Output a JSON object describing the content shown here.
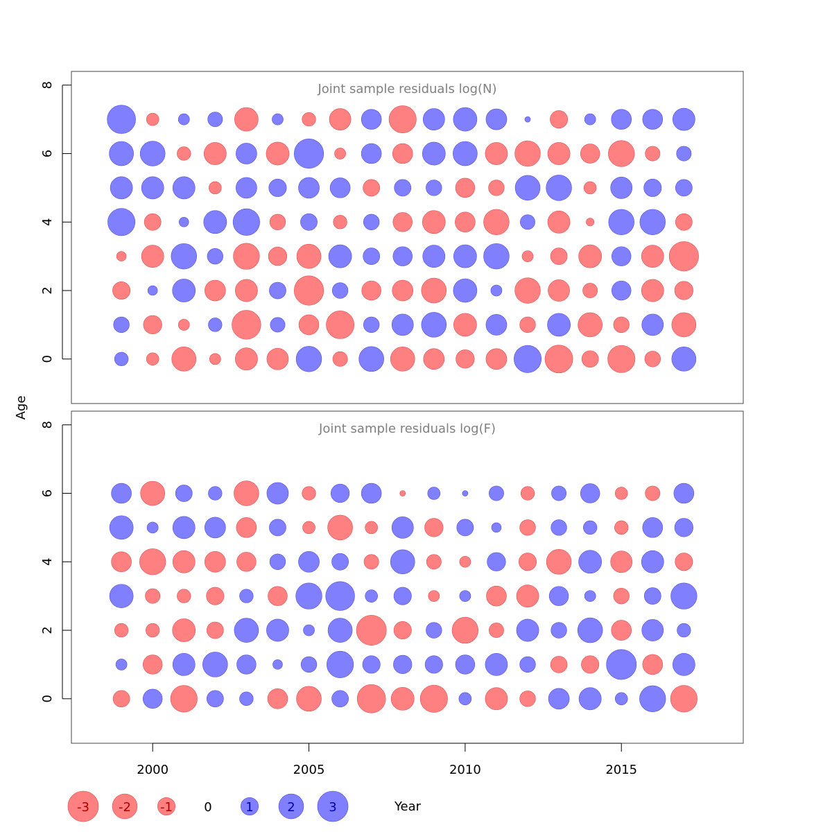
{
  "chart_data": {
    "type": "bubble",
    "ylabel": "Age",
    "xlabel": "Year",
    "xlim": [
      1997.4,
      2018.9
    ],
    "x_ticks": [
      2000,
      2005,
      2010,
      2015
    ],
    "colors": {
      "negative": "#ff8080",
      "positive": "#8080ff"
    },
    "years": [
      1999,
      2000,
      2001,
      2002,
      2003,
      2004,
      2005,
      2006,
      2007,
      2008,
      2009,
      2010,
      2011,
      2012,
      2013,
      2014,
      2015,
      2016,
      2017
    ],
    "panels": [
      {
        "title": "Joint sample residuals log(N)",
        "ylim": [
          -1.3,
          8.4
        ],
        "y_ticks": [
          0,
          2,
          4,
          6,
          8
        ],
        "ages": [
          0,
          1,
          2,
          3,
          4,
          5,
          6,
          7
        ],
        "residuals": [
          [
            0.6,
            -0.5,
            -1.9,
            -0.4,
            -1.6,
            -1.5,
            2.1,
            -0.7,
            2.0,
            -1.9,
            -1.4,
            -1.1,
            -1.4,
            2.4,
            -2.5,
            -0.9,
            -2.4,
            -0.8,
            1.9
          ],
          [
            0.8,
            -1.1,
            -0.4,
            0.6,
            -2.7,
            0.7,
            -1.3,
            -2.5,
            0.8,
            1.5,
            2.0,
            -1.7,
            1.4,
            -0.8,
            1.7,
            -1.9,
            -0.8,
            1.5,
            -1.9
          ],
          [
            -1.0,
            0.3,
            1.7,
            -1.4,
            -1.6,
            0.9,
            -2.8,
            0.8,
            -1.2,
            -1.4,
            -2.0,
            1.8,
            0.4,
            -2.1,
            -1.5,
            -0.7,
            1.2,
            -1.6,
            -1.1
          ],
          [
            -0.3,
            -1.6,
            2.1,
            0.8,
            -2.2,
            -1.1,
            -1.9,
            1.7,
            0.9,
            1.2,
            1.6,
            1.7,
            2.1,
            -0.4,
            -0.9,
            -1.7,
            1.2,
            -1.6,
            -2.8
          ],
          [
            2.4,
            -0.9,
            0.3,
            1.7,
            2.3,
            -0.8,
            0.9,
            -0.6,
            0.8,
            -1.2,
            -1.7,
            -1.3,
            -2.1,
            0.7,
            -1.6,
            -0.2,
            2.1,
            2.1,
            -0.9
          ],
          [
            1.6,
            1.6,
            1.6,
            -0.5,
            1.4,
            1.0,
            1.4,
            1.3,
            -0.9,
            0.9,
            0.8,
            -1.2,
            -0.8,
            2.0,
            2.1,
            -0.5,
            1.5,
            1.0,
            0.9
          ],
          [
            1.9,
            2.0,
            -0.6,
            -1.6,
            1.4,
            -1.7,
            2.8,
            -0.4,
            1.3,
            -1.3,
            1.7,
            1.9,
            -1.6,
            -2.1,
            -1.6,
            -1.2,
            -2.2,
            -0.7,
            0.7
          ],
          [
            2.6,
            -0.5,
            0.4,
            0.7,
            -1.8,
            0.4,
            -0.6,
            -1.5,
            1.3,
            -2.4,
            1.5,
            1.8,
            1.4,
            0.1,
            -1.0,
            0.4,
            1.3,
            1.3,
            1.6
          ]
        ]
      },
      {
        "title": "Joint sample residuals log(F)",
        "ylim": [
          -1.3,
          8.4
        ],
        "y_ticks": [
          0,
          2,
          4,
          6,
          8
        ],
        "ages": [
          0,
          1,
          2,
          3,
          4,
          5,
          6
        ],
        "residuals": [
          [
            -0.9,
            1.2,
            -2.3,
            0.9,
            0.6,
            -1.3,
            -2.0,
            0.9,
            -2.6,
            -1.7,
            -2.4,
            0.5,
            -1.6,
            -0.8,
            1.4,
            1.6,
            0.5,
            2.2,
            -2.3
          ],
          [
            0.4,
            -1.2,
            1.6,
            2.0,
            1.2,
            0.3,
            0.8,
            2.3,
            1.0,
            1.1,
            1.0,
            1.2,
            1.6,
            0.8,
            -0.9,
            -1.0,
            2.9,
            -1.3,
            1.6
          ],
          [
            -0.6,
            -0.6,
            -1.7,
            -0.9,
            1.9,
            1.6,
            0.4,
            1.9,
            -2.9,
            -1.0,
            0.8,
            -2.2,
            -0.7,
            1.6,
            0.8,
            2.0,
            -1.3,
            1.5,
            0.6
          ],
          [
            1.8,
            -0.7,
            -0.6,
            -1.0,
            0.6,
            -1.2,
            2.2,
            2.7,
            0.5,
            1.0,
            -0.4,
            0.4,
            -1.3,
            -1.6,
            1.2,
            0.4,
            -0.8,
            0.9,
            2.2
          ],
          [
            -1.3,
            -2.2,
            -1.6,
            -1.4,
            -1.2,
            0.8,
            1.4,
            0.9,
            -0.7,
            1.9,
            -0.7,
            -0.4,
            1.1,
            -1.0,
            -2.0,
            1.7,
            -1.5,
            1.6,
            -1.0
          ],
          [
            1.8,
            0.4,
            1.6,
            1.4,
            -1.3,
            0.9,
            -0.5,
            -2.0,
            -0.5,
            1.5,
            -1.1,
            0.9,
            0.3,
            -0.8,
            0.8,
            0.6,
            -0.6,
            1.3,
            1.1
          ],
          [
            1.3,
            -1.9,
            0.9,
            0.6,
            -2.0,
            1.5,
            -0.6,
            1.1,
            1.3,
            -0.1,
            0.5,
            0.1,
            0.7,
            -0.6,
            0.7,
            1.2,
            -0.5,
            -0.7,
            1.3
          ]
        ]
      }
    ],
    "legend": {
      "labels": [
        "-3",
        "-2",
        "-1",
        "0",
        "1",
        "2",
        "3"
      ],
      "values": [
        -3,
        -2,
        -1,
        0,
        1,
        2,
        3
      ],
      "xlabel": "Year"
    }
  }
}
